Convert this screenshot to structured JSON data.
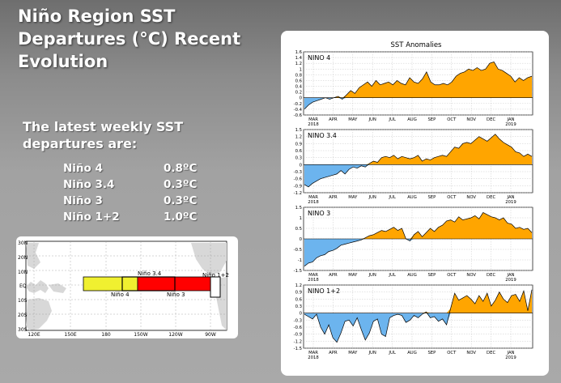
{
  "slide": {
    "title_lines": [
      "Niño Region SST",
      "Departures (°C) Recent",
      "Evolution"
    ],
    "subtitle_lines": [
      "The latest weekly SST",
      "departures are:"
    ],
    "latest": [
      {
        "region": "Niño 4",
        "value": "0.8ºC"
      },
      {
        "region": "Niño 3.4",
        "value": "0.3ºC"
      },
      {
        "region": "Niño 3",
        "value": "0.3ºC"
      },
      {
        "region": "Niño 1+2",
        "value": "1.0ºC"
      }
    ]
  },
  "map": {
    "lat_labels": [
      "30N",
      "20N",
      "10N",
      "EQ",
      "10S",
      "20S",
      "30S"
    ],
    "lon_labels": [
      "120E",
      "150E",
      "180",
      "150W",
      "120W",
      "90W"
    ],
    "box_labels": {
      "n34": "Niño 3.4",
      "n12": "Niño 1+2",
      "n4": "Niño 4",
      "n3": "Niño 3"
    },
    "colors": {
      "nino4": "#f0f030",
      "nino3": "#ff0000",
      "land": "#d8d8d8"
    }
  },
  "chart_data": {
    "type": "area",
    "title": "SST Anomalies",
    "xlabels": [
      "MAR\n2018",
      "APR",
      "MAY",
      "JUN",
      "JUL",
      "AUG",
      "SEP",
      "OCT",
      "NOV",
      "DEC",
      "JAN\n2019"
    ],
    "colors": {
      "positive": "#ffa500",
      "negative": "#6cb4ee"
    },
    "panels": [
      {
        "name": "NINO 4",
        "ylim": [
          -0.6,
          1.6
        ],
        "yticks": [
          "1.6",
          "1.4",
          "1.2",
          "1",
          "0.8",
          "0.6",
          "0.4",
          "0.2",
          "0",
          "-0.2",
          "-0.4",
          "-0.6"
        ],
        "values": [
          -0.4,
          -0.25,
          -0.15,
          -0.1,
          -0.05,
          0.0,
          -0.05,
          0.0,
          0.05,
          -0.05,
          0.1,
          0.25,
          0.15,
          0.35,
          0.45,
          0.55,
          0.4,
          0.6,
          0.45,
          0.5,
          0.55,
          0.45,
          0.6,
          0.5,
          0.45,
          0.7,
          0.55,
          0.5,
          0.65,
          0.9,
          0.55,
          0.45,
          0.45,
          0.5,
          0.45,
          0.55,
          0.75,
          0.85,
          0.9,
          1.0,
          0.95,
          1.05,
          0.95,
          1.0,
          1.2,
          1.25,
          1.0,
          0.95,
          0.85,
          0.75,
          0.55,
          0.7,
          0.6,
          0.7,
          0.75
        ]
      },
      {
        "name": "NINO 3.4",
        "ylim": [
          -1.2,
          1.5
        ],
        "yticks": [
          "1.5",
          "1.2",
          "0.9",
          "0.6",
          "0.3",
          "0",
          "-0.3",
          "-0.6",
          "-0.9",
          "-1.2"
        ],
        "values": [
          -0.85,
          -0.95,
          -0.8,
          -0.7,
          -0.6,
          -0.55,
          -0.5,
          -0.45,
          -0.4,
          -0.25,
          -0.4,
          -0.2,
          -0.1,
          -0.15,
          -0.05,
          -0.1,
          0.05,
          0.15,
          0.1,
          0.3,
          0.35,
          0.3,
          0.4,
          0.25,
          0.35,
          0.3,
          0.25,
          0.3,
          0.4,
          0.15,
          0.25,
          0.2,
          0.3,
          0.35,
          0.4,
          0.35,
          0.55,
          0.75,
          0.7,
          0.9,
          0.95,
          0.9,
          1.05,
          1.2,
          1.1,
          1.0,
          1.15,
          1.3,
          1.1,
          0.95,
          0.85,
          0.75,
          0.55,
          0.5,
          0.35,
          0.45,
          0.35
        ]
      },
      {
        "name": "NINO 3",
        "ylim": [
          -1.5,
          1.5
        ],
        "yticks": [
          "1.5",
          "1",
          "0.5",
          "0",
          "-0.5",
          "-1",
          "-1.5"
        ],
        "values": [
          -1.3,
          -1.15,
          -1.1,
          -0.9,
          -0.8,
          -0.75,
          -0.6,
          -0.55,
          -0.45,
          -0.3,
          -0.25,
          -0.2,
          -0.15,
          -0.1,
          -0.05,
          0.05,
          0.15,
          0.2,
          0.3,
          0.4,
          0.35,
          0.45,
          0.55,
          0.4,
          0.5,
          0.0,
          -0.1,
          0.2,
          0.35,
          0.1,
          0.3,
          0.5,
          0.35,
          0.55,
          0.65,
          0.85,
          0.9,
          0.8,
          1.05,
          0.9,
          0.95,
          1.0,
          1.1,
          0.95,
          1.25,
          1.15,
          1.05,
          1.0,
          0.9,
          1.0,
          0.75,
          0.7,
          0.5,
          0.55,
          0.45,
          0.5,
          0.3
        ]
      },
      {
        "name": "NINO 1+2",
        "ylim": [
          -1.5,
          1.2
        ],
        "yticks": [
          "1.2",
          "0.9",
          "0.6",
          "0.3",
          "0",
          "-0.3",
          "-0.6",
          "-0.9",
          "-1.2",
          "-1.5"
        ],
        "values": [
          -0.05,
          -0.15,
          -0.25,
          -0.05,
          -0.6,
          -0.9,
          -0.5,
          -1.05,
          -1.25,
          -0.85,
          -0.35,
          -0.3,
          -0.55,
          -0.2,
          -0.7,
          -1.15,
          -0.85,
          -0.35,
          -0.25,
          -0.9,
          -1.0,
          -0.2,
          -0.1,
          -0.05,
          -0.1,
          -0.4,
          -0.3,
          -0.1,
          -0.2,
          -0.05,
          0.05,
          -0.2,
          -0.15,
          -0.35,
          -0.25,
          -0.5,
          0.2,
          0.85,
          0.55,
          0.65,
          0.75,
          0.6,
          0.4,
          0.75,
          0.5,
          0.85,
          0.3,
          0.55,
          0.9,
          0.6,
          0.45,
          0.75,
          0.8,
          0.5,
          0.95,
          0.1,
          1.0
        ]
      }
    ]
  }
}
